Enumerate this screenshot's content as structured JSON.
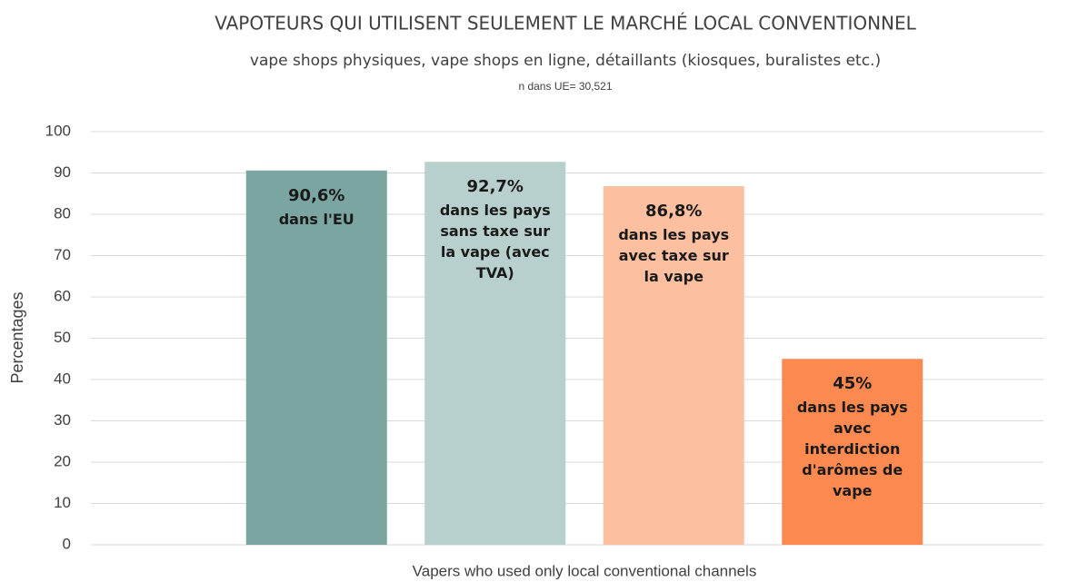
{
  "chart_data": {
    "type": "bar",
    "title": "VAPOTEURS QUI UTILISENT SEULEMENT LE MARCHÉ LOCAL CONVENTIONNEL",
    "subtitle": "vape shops physiques, vape shops en ligne, détaillants (kiosques, buralistes etc.)",
    "note": "n dans UE= 30,521",
    "ylabel": "Percentages",
    "categories": [
      "Vapers who used only local conventional channels"
    ],
    "series": [
      {
        "name": "dans l'EU",
        "color": "#7ba5a0",
        "values": [
          90.6
        ],
        "value_labels": [
          "90,6%"
        ]
      },
      {
        "name": "dans les pays sans taxe sur la vape (avec TVA)",
        "color": "#b8d0cd",
        "values": [
          92.7
        ],
        "value_labels": [
          "92,7%"
        ]
      },
      {
        "name": "dans les pays avec taxe sur la vape",
        "color": "#fcc0a0",
        "values": [
          86.8
        ],
        "value_labels": [
          "86,8%"
        ]
      },
      {
        "name": "dans les pays avec interdiction d'arômes de vape",
        "color": "#fc8a50",
        "values": [
          45
        ],
        "value_labels": [
          "45%"
        ]
      }
    ],
    "ylim": [
      0,
      100
    ],
    "yticks": [
      0,
      10,
      20,
      30,
      40,
      50,
      60,
      70,
      80,
      90,
      100
    ],
    "grid": true
  }
}
